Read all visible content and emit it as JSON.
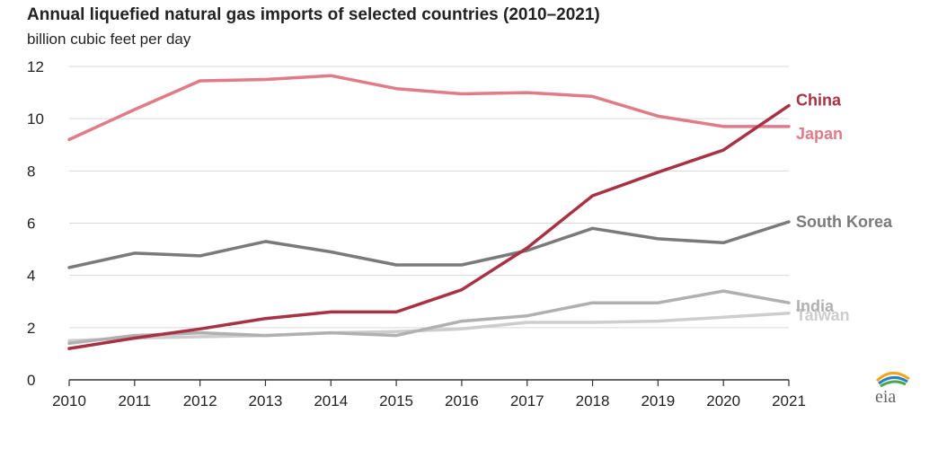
{
  "colors": {
    "China": "#a83244",
    "Japan": "#e07b87",
    "South Korea": "#7a7a7a",
    "India": "#b0b0b0",
    "Taiwan": "#cdcdcd",
    "grid": "#d9d9d9",
    "axis": "#333333"
  },
  "chart_data": {
    "type": "line",
    "title": "Annual liquefied natural gas imports of selected countries (2010–2021)",
    "subtitle": "billion cubic feet per day",
    "xlabel": "",
    "ylabel": "",
    "x": [
      2010,
      2011,
      2012,
      2013,
      2014,
      2015,
      2016,
      2017,
      2018,
      2019,
      2020,
      2021
    ],
    "ylim": [
      0,
      12
    ],
    "yticks": [
      0,
      2,
      4,
      6,
      8,
      10,
      12
    ],
    "grid": true,
    "legend": "labels at end of lines (right)",
    "series": [
      {
        "name": "Japan",
        "values": [
          9.2,
          10.35,
          11.45,
          11.5,
          11.65,
          11.15,
          10.95,
          11.0,
          10.85,
          10.1,
          9.7,
          9.7
        ]
      },
      {
        "name": "South Korea",
        "values": [
          4.3,
          4.85,
          4.75,
          5.3,
          4.9,
          4.4,
          4.4,
          4.95,
          5.8,
          5.4,
          5.25,
          6.05
        ]
      },
      {
        "name": "Taiwan",
        "values": [
          1.5,
          1.6,
          1.65,
          1.7,
          1.8,
          1.85,
          1.95,
          2.2,
          2.2,
          2.25,
          2.4,
          2.55
        ]
      },
      {
        "name": "India",
        "values": [
          1.4,
          1.7,
          1.8,
          1.7,
          1.8,
          1.7,
          2.25,
          2.45,
          2.95,
          2.95,
          3.4,
          2.95
        ]
      },
      {
        "name": "China",
        "values": [
          1.2,
          1.6,
          1.95,
          2.35,
          2.6,
          2.6,
          3.45,
          5.05,
          7.05,
          7.95,
          8.8,
          10.5
        ]
      }
    ]
  },
  "logo": {
    "text": "eia"
  }
}
